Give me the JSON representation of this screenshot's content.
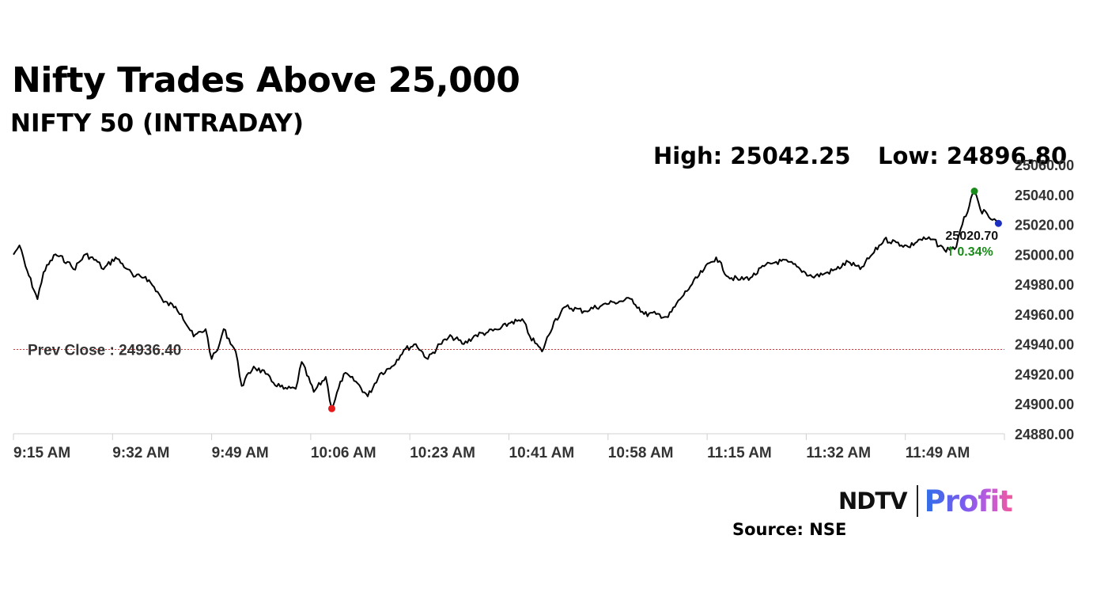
{
  "header": {
    "title": "Nifty Trades Above 25,000",
    "subtitle": "NIFTY 50 (INTRADAY)",
    "high_label": "High: 25042.25",
    "low_label": "Low: 24896.80"
  },
  "footer": {
    "source": "Source: NSE",
    "logo_ndtv": "NDTV",
    "logo_profit": "Profit"
  },
  "colors": {
    "line": "#000000",
    "prev_close_line": "#e03030",
    "high_dot": "#1a8a1a",
    "low_dot": "#e51b1b",
    "last_dot": "#1d2fbf",
    "change_text": "#1a8a1a",
    "grid_axis": "#d0d0d0"
  },
  "icons": {
    "change_arrow": "up-arrow-icon"
  },
  "chart_data": {
    "type": "line",
    "title": "",
    "xlabel": "",
    "ylabel": "",
    "ylim": [
      24880,
      25060
    ],
    "y_ticks": [
      "24880.00",
      "24900.00",
      "24920.00",
      "24940.00",
      "24960.00",
      "24980.00",
      "25000.00",
      "25020.00",
      "25040.00",
      "25060.00"
    ],
    "x_tick_labels": [
      "9:15 AM",
      "9:32 AM",
      "9:49 AM",
      "10:06 AM",
      "10:23 AM",
      "10:41 AM",
      "10:58 AM",
      "11:15 AM",
      "11:32 AM",
      "11:49 AM"
    ],
    "x_axis_start": "09:15",
    "x_axis_end": "12:00",
    "series": [
      {
        "time": [
          "09:15",
          "09:16",
          "09:17",
          "09:19",
          "09:20",
          "09:22",
          "09:24",
          "09:25",
          "09:27",
          "09:29",
          "09:30",
          "09:32",
          "09:34",
          "09:35",
          "09:37",
          "09:39",
          "09:40",
          "09:42",
          "09:43",
          "09:45",
          "09:47",
          "09:48",
          "09:49",
          "09:50",
          "09:52",
          "09:53",
          "09:55",
          "09:57",
          "09:58",
          "10:00",
          "10:02",
          "10:03",
          "10:05",
          "10:07",
          "10:08",
          "10:10",
          "10:12",
          "10:14",
          "10:16",
          "10:18",
          "10:20",
          "10:22",
          "10:24",
          "10:26",
          "10:28",
          "10:30",
          "10:32",
          "10:34",
          "10:36",
          "10:38",
          "10:40",
          "10:41",
          "10:43",
          "10:45",
          "10:47",
          "10:50",
          "10:53",
          "10:55",
          "10:58",
          "11:00",
          "11:02",
          "11:04",
          "11:06",
          "11:08",
          "11:10",
          "11:12",
          "11:14",
          "11:16",
          "11:18",
          "11:20",
          "11:22",
          "11:24",
          "11:26",
          "11:28",
          "11:30",
          "11:32",
          "11:34",
          "11:36",
          "11:38",
          "11:40",
          "11:42",
          "11:44",
          "11:46",
          "11:48",
          "11:50",
          "11:52",
          "11:53",
          "11:55",
          "11:56",
          "11:58",
          "11:59"
        ],
        "values": [
          24999.8,
          25006,
          24992,
          24970,
          24988,
          25000,
          24995,
          24990,
          25000,
          24995,
          24990,
          24998,
          24990,
          24985,
          24985,
          24975,
          24968,
          24965,
          24960,
          24945,
          24950,
          24930,
          24936,
          24950,
          24935,
          24912,
          24925,
          24920,
          24915,
          24910,
          24910,
          24928,
          24908,
          24918,
          24896.8,
          24920,
          24915,
          24905,
          24920,
          24925,
          24936,
          24940,
          24930,
          24940,
          24945,
          24940,
          24946,
          24948,
          24950,
          24955,
          24955,
          24945,
          24935,
          24955,
          24965,
          24962,
          24966,
          24968,
          24970,
          24960,
          24960,
          24958,
          24970,
          24980,
          24990,
          24998,
          24985,
          24983,
          24985,
          24992,
          24995,
          24995,
          24990,
          24985,
          24987,
          24990,
          24995,
          24990,
          25000,
          25010,
          25008,
          25005,
          25010,
          25010,
          25003,
          25005,
          25020,
          25042.25,
          25030,
          25023,
          25020.7
        ]
      }
    ],
    "prev_close": 24936.4,
    "prev_close_label": "Prev Close : 24936.40",
    "high_value": 25042.25,
    "low_value": 24896.8,
    "last_value_label": "25020.70",
    "change_label": "0.34%"
  }
}
